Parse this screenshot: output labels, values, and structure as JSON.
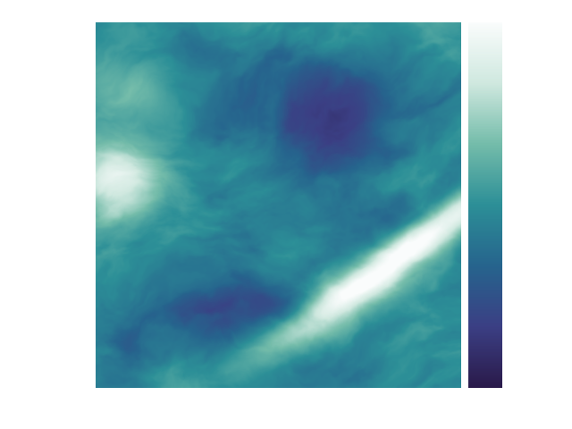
{
  "image": {
    "kind": "scalar-field-map",
    "colormap": {
      "name": "deep-teal",
      "stops": [
        "#2a1a4a",
        "#3b3f84",
        "#26648d",
        "#2c8f97",
        "#74bcaa",
        "#cfe8df",
        "#fafcfc"
      ]
    },
    "background": "#ffffff",
    "colorbar": {
      "present": true,
      "tick_labels": false,
      "orientation": "vertical"
    }
  }
}
